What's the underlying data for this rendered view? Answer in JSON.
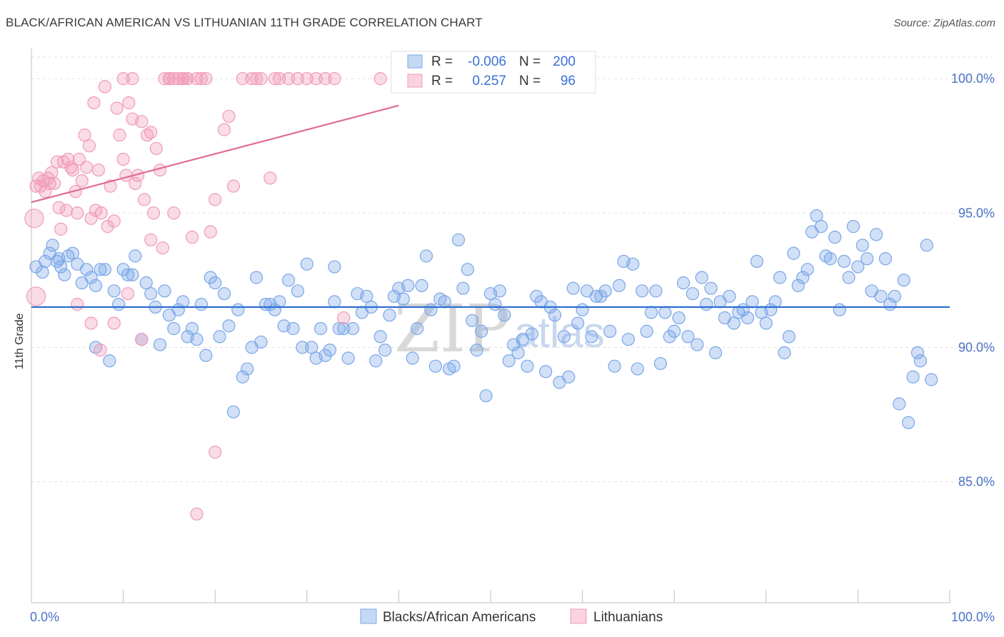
{
  "title": "BLACK/AFRICAN AMERICAN VS LITHUANIAN 11TH GRADE CORRELATION CHART",
  "source": "Source: ZipAtlas.com",
  "watermark": {
    "zip": "ZIP",
    "atlas": "atlas"
  },
  "legend": {
    "rows": [
      {
        "r_label": "R =",
        "r_value": "-0.006",
        "n_label": "N =",
        "n_value": "200",
        "color": "#7aa6e8"
      },
      {
        "r_label": "R =",
        "r_value": "0.257",
        "n_label": "N =",
        "n_value": "96",
        "color": "#f09ab8"
      }
    ]
  },
  "bottom_legend": [
    {
      "label": "Blacks/African Americans",
      "color": "#7aa6e8"
    },
    {
      "label": "Lithuanians",
      "color": "#f09ab8"
    }
  ],
  "chart_data": {
    "type": "scatter",
    "title": "BLACK/AFRICAN AMERICAN VS LITHUANIAN 11TH GRADE CORRELATION CHART",
    "xlabel": "",
    "ylabel": "11th Grade",
    "xlim": [
      0,
      100
    ],
    "ylim": [
      80.5,
      100.8
    ],
    "x_tick_labels": [
      "0.0%",
      "100.0%"
    ],
    "y_ticks": [
      85,
      90,
      95,
      100
    ],
    "y_tick_labels": [
      "85.0%",
      "90.0%",
      "95.0%",
      "100.0%"
    ],
    "grid": true,
    "legend_position": "top-center",
    "series": [
      {
        "name": "Blacks/African Americans",
        "color": "#7aa6e8",
        "r": -0.006,
        "n": 200,
        "trend": {
          "x": [
            0,
            100
          ],
          "y": [
            91.5,
            91.5
          ]
        },
        "points": [
          [
            0.5,
            93.0
          ],
          [
            1.2,
            92.8
          ],
          [
            1.5,
            93.2
          ],
          [
            2.0,
            93.5
          ],
          [
            2.3,
            93.8
          ],
          [
            2.8,
            93.2
          ],
          [
            3.2,
            93.0
          ],
          [
            3.6,
            92.7
          ],
          [
            4.0,
            93.4
          ],
          [
            4.5,
            93.5
          ],
          [
            5.0,
            93.1
          ],
          [
            5.5,
            92.4
          ],
          [
            6.0,
            92.9
          ],
          [
            6.5,
            92.6
          ],
          [
            7.0,
            92.3
          ],
          [
            7.5,
            92.9
          ],
          [
            8.0,
            92.9
          ],
          [
            8.5,
            89.5
          ],
          [
            9.0,
            92.1
          ],
          [
            9.5,
            91.6
          ],
          [
            10.0,
            92.9
          ],
          [
            10.5,
            92.7
          ],
          [
            11.0,
            92.7
          ],
          [
            11.3,
            93.4
          ],
          [
            12.0,
            90.3
          ],
          [
            12.5,
            92.4
          ],
          [
            13.0,
            92.0
          ],
          [
            13.5,
            91.5
          ],
          [
            14.0,
            90.1
          ],
          [
            14.5,
            92.1
          ],
          [
            15.0,
            91.2
          ],
          [
            15.5,
            90.7
          ],
          [
            16.0,
            91.4
          ],
          [
            16.5,
            91.7
          ],
          [
            17.0,
            90.4
          ],
          [
            17.5,
            90.7
          ],
          [
            18.0,
            90.3
          ],
          [
            18.5,
            91.6
          ],
          [
            19.0,
            89.7
          ],
          [
            19.5,
            92.6
          ],
          [
            20.0,
            92.4
          ],
          [
            20.5,
            90.4
          ],
          [
            21.0,
            92.0
          ],
          [
            21.5,
            90.8
          ],
          [
            22.0,
            87.6
          ],
          [
            22.5,
            91.4
          ],
          [
            23.0,
            88.9
          ],
          [
            23.5,
            89.2
          ],
          [
            24.0,
            90.0
          ],
          [
            24.5,
            92.6
          ],
          [
            25.0,
            90.2
          ],
          [
            25.5,
            91.6
          ],
          [
            26.0,
            91.6
          ],
          [
            26.5,
            91.4
          ],
          [
            27.0,
            91.7
          ],
          [
            27.5,
            90.8
          ],
          [
            28.0,
            92.5
          ],
          [
            28.5,
            90.7
          ],
          [
            29.0,
            92.1
          ],
          [
            29.5,
            90.0
          ],
          [
            30.0,
            93.1
          ],
          [
            30.5,
            90.0
          ],
          [
            31.0,
            89.6
          ],
          [
            31.5,
            90.7
          ],
          [
            32.0,
            89.7
          ],
          [
            32.5,
            89.9
          ],
          [
            33.0,
            91.7
          ],
          [
            33.5,
            90.7
          ],
          [
            34.0,
            90.7
          ],
          [
            34.5,
            89.6
          ],
          [
            35.0,
            90.7
          ],
          [
            35.5,
            92.0
          ],
          [
            36.0,
            91.3
          ],
          [
            36.5,
            91.9
          ],
          [
            37.0,
            91.5
          ],
          [
            37.5,
            89.5
          ],
          [
            38.0,
            90.4
          ],
          [
            38.5,
            89.9
          ],
          [
            39.0,
            91.2
          ],
          [
            39.5,
            91.9
          ],
          [
            40.0,
            92.2
          ],
          [
            40.5,
            91.8
          ],
          [
            41.0,
            92.3
          ],
          [
            41.5,
            89.6
          ],
          [
            42.0,
            90.7
          ],
          [
            42.5,
            92.3
          ],
          [
            43.0,
            93.4
          ],
          [
            43.5,
            91.4
          ],
          [
            44.0,
            89.3
          ],
          [
            44.5,
            91.8
          ],
          [
            45.0,
            91.7
          ],
          [
            45.5,
            89.2
          ],
          [
            46.0,
            89.3
          ],
          [
            46.5,
            94.0
          ],
          [
            47.0,
            92.2
          ],
          [
            47.5,
            92.9
          ],
          [
            48.0,
            91.0
          ],
          [
            48.5,
            89.9
          ],
          [
            49.0,
            90.6
          ],
          [
            49.5,
            88.2
          ],
          [
            50.0,
            92.0
          ],
          [
            50.5,
            91.6
          ],
          [
            51.0,
            92.1
          ],
          [
            51.5,
            91.2
          ],
          [
            52.0,
            89.5
          ],
          [
            52.5,
            90.1
          ],
          [
            53.0,
            89.8
          ],
          [
            53.5,
            90.3
          ],
          [
            54.0,
            89.3
          ],
          [
            54.5,
            90.5
          ],
          [
            55.0,
            91.9
          ],
          [
            55.5,
            91.7
          ],
          [
            56.0,
            89.1
          ],
          [
            56.5,
            91.5
          ],
          [
            57.0,
            91.2
          ],
          [
            57.5,
            88.7
          ],
          [
            58.0,
            90.4
          ],
          [
            58.5,
            88.9
          ],
          [
            59.0,
            92.2
          ],
          [
            59.5,
            90.9
          ],
          [
            60.0,
            91.4
          ],
          [
            60.5,
            92.1
          ],
          [
            61.0,
            90.4
          ],
          [
            61.5,
            91.9
          ],
          [
            62.0,
            91.9
          ],
          [
            62.5,
            92.1
          ],
          [
            63.0,
            90.6
          ],
          [
            63.5,
            89.3
          ],
          [
            64.0,
            92.3
          ],
          [
            64.5,
            93.2
          ],
          [
            65.0,
            90.3
          ],
          [
            65.5,
            93.1
          ],
          [
            66.0,
            89.2
          ],
          [
            66.5,
            92.1
          ],
          [
            67.0,
            90.6
          ],
          [
            67.5,
            91.3
          ],
          [
            68.0,
            92.1
          ],
          [
            68.5,
            89.4
          ],
          [
            69.0,
            91.3
          ],
          [
            69.5,
            90.4
          ],
          [
            70.0,
            90.6
          ],
          [
            70.5,
            91.1
          ],
          [
            71.0,
            92.4
          ],
          [
            71.5,
            90.4
          ],
          [
            72.0,
            92.0
          ],
          [
            72.5,
            90.1
          ],
          [
            73.0,
            92.6
          ],
          [
            73.5,
            91.6
          ],
          [
            74.0,
            92.2
          ],
          [
            74.5,
            89.8
          ],
          [
            75.0,
            91.7
          ],
          [
            75.5,
            91.1
          ],
          [
            76.0,
            91.9
          ],
          [
            76.5,
            90.9
          ],
          [
            77.0,
            91.3
          ],
          [
            77.5,
            91.4
          ],
          [
            78.0,
            91.1
          ],
          [
            78.5,
            91.7
          ],
          [
            79.0,
            93.2
          ],
          [
            79.5,
            91.3
          ],
          [
            80.0,
            90.9
          ],
          [
            80.5,
            91.4
          ],
          [
            81.0,
            91.7
          ],
          [
            81.5,
            92.6
          ],
          [
            82.0,
            89.8
          ],
          [
            82.5,
            90.4
          ],
          [
            83.0,
            93.5
          ],
          [
            83.5,
            92.3
          ],
          [
            84.0,
            92.6
          ],
          [
            84.5,
            92.9
          ],
          [
            85.0,
            94.3
          ],
          [
            85.5,
            94.9
          ],
          [
            86.0,
            94.5
          ],
          [
            86.5,
            93.4
          ],
          [
            87.0,
            93.3
          ],
          [
            87.5,
            94.1
          ],
          [
            88.0,
            91.4
          ],
          [
            88.5,
            93.2
          ],
          [
            89.0,
            92.6
          ],
          [
            89.5,
            94.5
          ],
          [
            90.0,
            93.0
          ],
          [
            90.5,
            93.8
          ],
          [
            91.0,
            93.3
          ],
          [
            91.5,
            92.1
          ],
          [
            92.0,
            94.2
          ],
          [
            92.5,
            91.9
          ],
          [
            93.0,
            93.3
          ],
          [
            93.5,
            91.6
          ],
          [
            94.0,
            91.9
          ],
          [
            94.5,
            87.9
          ],
          [
            95.0,
            92.5
          ],
          [
            95.5,
            87.2
          ],
          [
            96.0,
            88.9
          ],
          [
            96.5,
            89.8
          ],
          [
            96.8,
            89.5
          ],
          [
            97.5,
            93.8
          ],
          [
            98.0,
            88.8
          ],
          [
            3.0,
            93.3
          ],
          [
            7.0,
            90.0
          ],
          [
            33.0,
            93.0
          ]
        ]
      },
      {
        "name": "Lithuanians",
        "color": "#f09ab8",
        "r": 0.257,
        "n": 96,
        "trend": {
          "x": [
            0,
            40
          ],
          "y": [
            95.4,
            99.0
          ]
        },
        "points": [
          [
            0.3,
            94.8
          ],
          [
            0.5,
            96.0
          ],
          [
            0.8,
            96.3
          ],
          [
            1.0,
            96.0
          ],
          [
            1.3,
            96.2
          ],
          [
            1.5,
            95.8
          ],
          [
            1.8,
            96.3
          ],
          [
            2.0,
            96.1
          ],
          [
            2.2,
            96.5
          ],
          [
            2.5,
            96.1
          ],
          [
            2.8,
            96.9
          ],
          [
            3.0,
            95.2
          ],
          [
            3.2,
            94.4
          ],
          [
            3.5,
            96.9
          ],
          [
            3.8,
            95.1
          ],
          [
            4.0,
            97.0
          ],
          [
            4.3,
            96.7
          ],
          [
            4.5,
            96.6
          ],
          [
            4.8,
            95.8
          ],
          [
            5.0,
            95.0
          ],
          [
            5.2,
            97.0
          ],
          [
            5.5,
            96.2
          ],
          [
            5.8,
            97.9
          ],
          [
            6.0,
            96.7
          ],
          [
            6.3,
            97.5
          ],
          [
            6.5,
            94.8
          ],
          [
            6.8,
            99.1
          ],
          [
            7.0,
            95.1
          ],
          [
            7.3,
            96.6
          ],
          [
            7.6,
            95.0
          ],
          [
            8.0,
            99.7
          ],
          [
            8.3,
            94.5
          ],
          [
            8.6,
            96.0
          ],
          [
            9.0,
            94.7
          ],
          [
            9.3,
            98.9
          ],
          [
            9.6,
            97.9
          ],
          [
            10.0,
            97.0
          ],
          [
            10.3,
            96.4
          ],
          [
            10.6,
            99.1
          ],
          [
            11.0,
            98.5
          ],
          [
            11.3,
            96.1
          ],
          [
            11.6,
            96.4
          ],
          [
            12.0,
            98.4
          ],
          [
            12.3,
            95.5
          ],
          [
            12.6,
            97.9
          ],
          [
            13.0,
            98.0
          ],
          [
            13.3,
            95.0
          ],
          [
            13.6,
            97.4
          ],
          [
            14.0,
            96.6
          ],
          [
            14.3,
            93.7
          ],
          [
            15.0,
            100.0
          ],
          [
            15.5,
            95.0
          ],
          [
            16.0,
            100.0
          ],
          [
            16.5,
            100.0
          ],
          [
            17.0,
            100.0
          ],
          [
            17.5,
            94.1
          ],
          [
            18.0,
            100.0
          ],
          [
            18.5,
            100.0
          ],
          [
            19.0,
            100.0
          ],
          [
            19.5,
            94.3
          ],
          [
            20.0,
            95.5
          ],
          [
            21.0,
            98.1
          ],
          [
            21.5,
            98.6
          ],
          [
            22.0,
            96.0
          ],
          [
            23.0,
            100.0
          ],
          [
            24.0,
            100.0
          ],
          [
            25.0,
            100.0
          ],
          [
            26.0,
            96.3
          ],
          [
            27.0,
            100.0
          ],
          [
            28.0,
            100.0
          ],
          [
            30.0,
            100.0
          ],
          [
            31.0,
            100.0
          ],
          [
            32.0,
            100.0
          ],
          [
            33.0,
            100.0
          ],
          [
            34.0,
            91.1
          ],
          [
            38.0,
            100.0
          ],
          [
            0.5,
            91.9
          ],
          [
            5.0,
            91.6
          ],
          [
            6.5,
            90.9
          ],
          [
            7.5,
            89.9
          ],
          [
            9.0,
            90.9
          ],
          [
            10.5,
            92.0
          ],
          [
            12.0,
            90.3
          ],
          [
            13.0,
            94.0
          ],
          [
            15.0,
            100.0
          ],
          [
            17.0,
            100.0
          ],
          [
            18.0,
            83.8
          ],
          [
            20.0,
            86.1
          ],
          [
            10.0,
            100.0
          ],
          [
            11.0,
            100.0
          ],
          [
            14.5,
            100.0
          ],
          [
            15.5,
            100.0
          ],
          [
            16.5,
            100.0
          ],
          [
            24.5,
            100.0
          ],
          [
            26.5,
            100.0
          ],
          [
            29.0,
            100.0
          ]
        ]
      }
    ]
  }
}
